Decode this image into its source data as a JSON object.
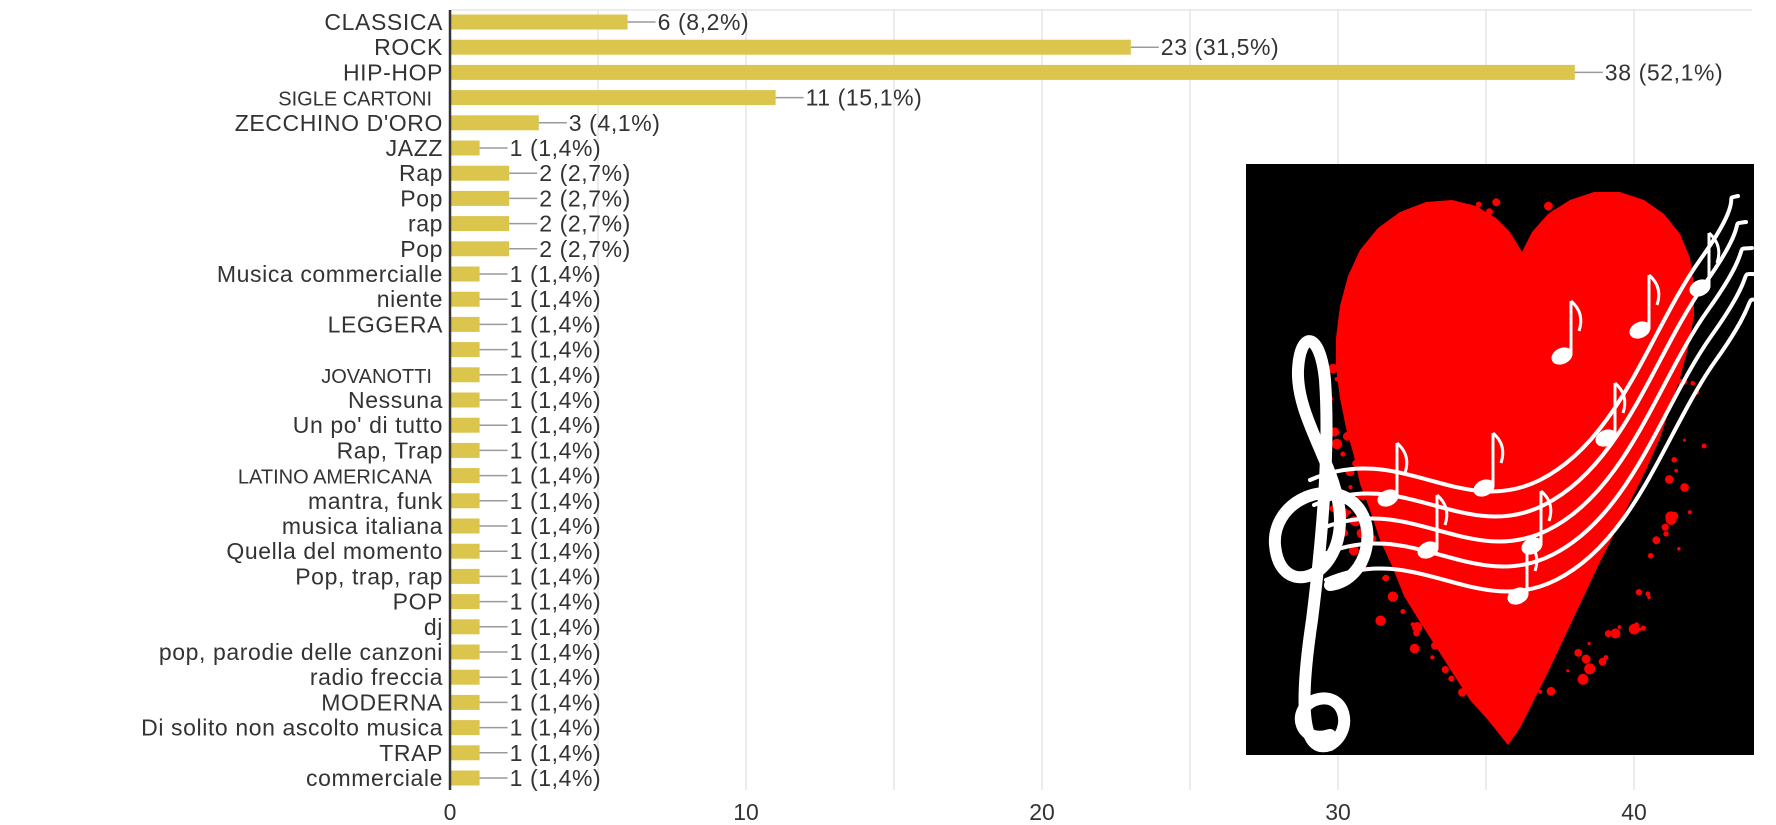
{
  "chart_data": {
    "type": "bar",
    "orientation": "horizontal",
    "title": "",
    "xlabel": "",
    "ylabel": "",
    "xlim": [
      0,
      44
    ],
    "x_ticks": [
      0,
      10,
      20,
      30,
      40
    ],
    "grid": true,
    "bar_color": "#dbc54c",
    "categories": [
      "CLASSICA",
      "ROCK",
      "HIP-HOP",
      "SIGLE CARTONI",
      "ZECCHINO D'ORO",
      "JAZZ",
      "Rap",
      "Pop",
      "rap",
      "Pop",
      "Musica commercialle",
      "niente",
      "LEGGERA",
      "",
      "JOVANOTTI",
      "Nessuna",
      "Un po' di tutto",
      "Rap, Trap",
      "LATINO AMERICANA",
      "mantra, funk",
      "musica italiana",
      "Quella del momento",
      "Pop, trap, rap",
      "POP",
      "dj",
      "pop, parodie delle canzoni",
      "radio freccia",
      "MODERNA",
      "Di solito non ascolto musica",
      "TRAP",
      "commerciale"
    ],
    "values": [
      6,
      23,
      38,
      11,
      3,
      1,
      2,
      2,
      2,
      2,
      1,
      1,
      1,
      1,
      1,
      1,
      1,
      1,
      1,
      1,
      1,
      1,
      1,
      1,
      1,
      1,
      1,
      1,
      1,
      1,
      1
    ],
    "data_labels": [
      "6 (8,2%)",
      "23 (31,5%)",
      "38 (52,1%)",
      "11 (15,1%)",
      "3 (4,1%)",
      "1 (1,4%)",
      "2 (2,7%)",
      "2 (2,7%)",
      "2 (2,7%)",
      "2 (2,7%)",
      "1 (1,4%)",
      "1 (1,4%)",
      "1 (1,4%)",
      "1 (1,4%)",
      "1 (1,4%)",
      "1 (1,4%)",
      "1 (1,4%)",
      "1 (1,4%)",
      "1 (1,4%)",
      "1 (1,4%)",
      "1 (1,4%)",
      "1 (1,4%)",
      "1 (1,4%)",
      "1 (1,4%)",
      "1 (1,4%)",
      "1 (1,4%)",
      "1 (1,4%)",
      "1 (1,4%)",
      "1 (1,4%)",
      "1 (1,4%)",
      "1 (1,4%)"
    ],
    "narrow_labels": [
      "SIGLE CARTONI",
      "JOVANOTTI",
      "LATINO AMERICANA"
    ]
  },
  "image": {
    "icon": "music-heart-icon",
    "background_color": "#000000",
    "heart_color": "#ff0000",
    "notes_color": "#ffffff"
  }
}
